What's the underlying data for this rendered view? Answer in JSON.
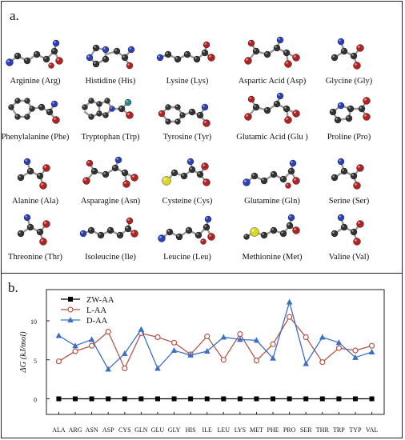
{
  "panel_a": {
    "label": "a.",
    "molecules": [
      {
        "name": "Arginine (Arg)",
        "shape": "chain-long"
      },
      {
        "name": "Histidine (His)",
        "shape": "ring5"
      },
      {
        "name": "Lysine (Lys)",
        "shape": "chain-flat"
      },
      {
        "name": "Aspartic Acid (Asp)",
        "shape": "acid"
      },
      {
        "name": "Glycine (Gly)",
        "shape": "small"
      },
      {
        "name": "Phenylalanine (Phe)",
        "shape": "ring6"
      },
      {
        "name": "Tryptophan (Trp)",
        "shape": "ring-double"
      },
      {
        "name": "Tyrosine (Tyr)",
        "shape": "ring6-oh"
      },
      {
        "name": "Glutamic Acid (Glu )",
        "shape": "acid"
      },
      {
        "name": "Proline (Pro)",
        "shape": "ring5-acid"
      },
      {
        "name": "Alanine (Ala)",
        "shape": "small"
      },
      {
        "name": "Asparagine (Asn)",
        "shape": "acid"
      },
      {
        "name": "Cysteine (Cys)",
        "shape": "sulfur"
      },
      {
        "name": "Glutamine (Gln)",
        "shape": "chain-long"
      },
      {
        "name": "Serine (Ser)",
        "shape": "small"
      },
      {
        "name": "Threonine (Thr)",
        "shape": "small"
      },
      {
        "name": "Isoleucine (Ile)",
        "shape": "chain-flat"
      },
      {
        "name": "Leucine (Leu)",
        "shape": "chain-long"
      },
      {
        "name": "Methionine (Met)",
        "shape": "sulfur-chain"
      },
      {
        "name": "Valine (Val)",
        "shape": "small"
      }
    ]
  },
  "panel_b": {
    "label": "b."
  },
  "chart_data": {
    "type": "line",
    "title": "",
    "xlabel": "",
    "ylabel": "ΔG (kJ/mol)",
    "categories": [
      "ALA",
      "ARG",
      "ASN",
      "ASP",
      "CYS",
      "GLN",
      "GLU",
      "GLY",
      "HIS",
      "ILE",
      "LEU",
      "LYS",
      "MET",
      "PHE",
      "PRO",
      "SER",
      "THR",
      "TRP",
      "TYP",
      "VAL"
    ],
    "ylim": [
      -2,
      14
    ],
    "yticks": [
      "0",
      "5",
      "10"
    ],
    "yticks_values": [
      0,
      5,
      10
    ],
    "legend_position": "top-left",
    "grid": false,
    "series": [
      {
        "name": "ZW-AA",
        "color": "#000000",
        "marker": "square",
        "values": [
          0,
          0,
          0,
          0,
          0,
          0,
          0,
          0,
          0,
          0,
          0,
          0,
          0,
          0,
          0,
          0,
          0,
          0,
          0,
          0
        ]
      },
      {
        "name": "L-AA",
        "color": "#b5554a",
        "marker": "circle",
        "values": [
          4.8,
          6.1,
          6.8,
          8.6,
          3.9,
          8.4,
          7.9,
          7.2,
          5.7,
          8.0,
          5.0,
          8.3,
          4.9,
          7.0,
          10.5,
          7.9,
          4.7,
          6.5,
          6.2,
          6.8
        ]
      },
      {
        "name": "D-AA",
        "color": "#3c6fc7",
        "marker": "triangle",
        "values": [
          8.1,
          6.8,
          7.6,
          3.8,
          5.8,
          8.9,
          3.9,
          6.2,
          5.6,
          6.1,
          7.9,
          7.6,
          7.5,
          5.2,
          12.4,
          4.5,
          7.9,
          7.2,
          5.3,
          6.0
        ]
      }
    ]
  }
}
